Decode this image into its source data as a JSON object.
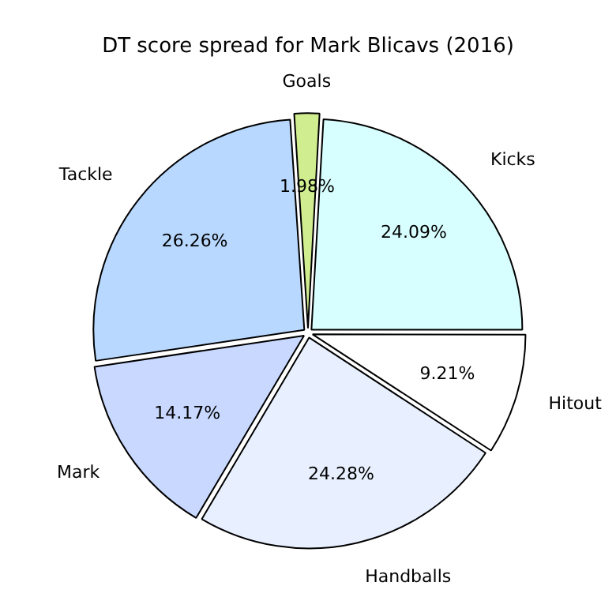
{
  "chart_data": {
    "type": "pie",
    "title": "DT score spread for Mark Blicavs (2016)",
    "categories": [
      "Hitout",
      "Handballs",
      "Mark",
      "Tackle",
      "Goals",
      "Kicks"
    ],
    "values": [
      9.21,
      24.28,
      14.17,
      26.26,
      1.98,
      24.09
    ],
    "colors": [
      "#ffffff",
      "#e8f0ff",
      "#c8d8ff",
      "#b8d8ff",
      "#d0ee90",
      "#d8ffff"
    ],
    "value_labels": [
      "9.21%",
      "24.28%",
      "14.17%",
      "26.26%",
      "1.98%",
      "24.09%"
    ],
    "legend": false
  }
}
